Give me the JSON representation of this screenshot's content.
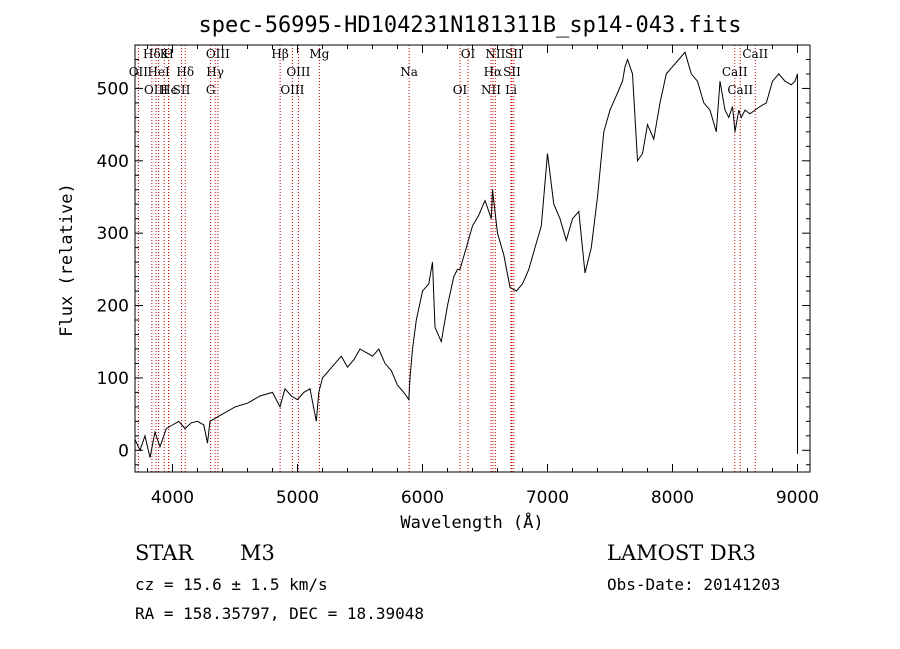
{
  "chart_data": {
    "type": "line",
    "title": "spec-56995-HD104231N181311B_sp14-043.fits",
    "xlabel": "Wavelength (Å)",
    "ylabel": "Flux (relative)",
    "xlim": [
      3700,
      9100
    ],
    "ylim": [
      -30,
      560
    ],
    "xticks": [
      4000,
      5000,
      6000,
      7000,
      8000,
      9000
    ],
    "yticks": [
      0,
      100,
      200,
      300,
      400,
      500
    ],
    "grid": false,
    "series": [
      {
        "name": "flux",
        "color": "#000000",
        "x": [
          3700,
          3740,
          3780,
          3820,
          3860,
          3900,
          3950,
          4000,
          4050,
          4100,
          4150,
          4200,
          4250,
          4280,
          4300,
          4350,
          4400,
          4450,
          4500,
          4600,
          4700,
          4800,
          4860,
          4900,
          4950,
          5000,
          5050,
          5100,
          5150,
          5170,
          5200,
          5250,
          5300,
          5350,
          5400,
          5450,
          5500,
          5550,
          5600,
          5650,
          5700,
          5750,
          5800,
          5850,
          5890,
          5900,
          5920,
          5950,
          6000,
          6050,
          6080,
          6100,
          6150,
          6200,
          6250,
          6280,
          6300,
          6350,
          6400,
          6450,
          6500,
          6550,
          6560,
          6600,
          6650,
          6700,
          6750,
          6800,
          6850,
          6900,
          6950,
          7000,
          7050,
          7100,
          7150,
          7200,
          7250,
          7300,
          7350,
          7400,
          7450,
          7500,
          7550,
          7600,
          7620,
          7640,
          7680,
          7720,
          7760,
          7800,
          7850,
          7900,
          7950,
          8000,
          8050,
          8100,
          8150,
          8200,
          8250,
          8300,
          8350,
          8380,
          8420,
          8450,
          8480,
          8500,
          8530,
          8550,
          8580,
          8620,
          8660,
          8700,
          8750,
          8800,
          8850,
          8900,
          8950,
          8980,
          9000,
          9000,
          9000
        ],
        "y": [
          15,
          0,
          20,
          -10,
          25,
          5,
          30,
          35,
          40,
          30,
          38,
          40,
          35,
          10,
          40,
          45,
          50,
          55,
          60,
          65,
          75,
          80,
          60,
          85,
          75,
          70,
          80,
          85,
          40,
          80,
          100,
          110,
          120,
          130,
          115,
          125,
          140,
          135,
          130,
          140,
          120,
          110,
          90,
          80,
          70,
          100,
          140,
          180,
          220,
          230,
          260,
          170,
          150,
          200,
          240,
          250,
          250,
          280,
          310,
          325,
          345,
          320,
          360,
          300,
          270,
          225,
          220,
          230,
          250,
          280,
          310,
          410,
          340,
          320,
          290,
          320,
          330,
          245,
          280,
          350,
          440,
          470,
          490,
          510,
          530,
          540,
          520,
          400,
          410,
          450,
          430,
          480,
          520,
          530,
          540,
          550,
          520,
          510,
          480,
          470,
          440,
          510,
          470,
          460,
          475,
          440,
          470,
          460,
          470,
          465,
          470,
          475,
          480,
          510,
          520,
          510,
          505,
          510,
          520,
          100,
          -5
        ]
      }
    ],
    "annotations": [
      {
        "label": "Hδ",
        "x": 3835
      },
      {
        "label": "OII",
        "x": 3727
      },
      {
        "label": "OIII",
        "x": 3868
      },
      {
        "label": "K",
        "x": 3934
      },
      {
        "label": "HeI",
        "x": 3889
      },
      {
        "label": "Hϵ",
        "x": 3970
      },
      {
        "label": "H",
        "x": 3968
      },
      {
        "label": "Hδ",
        "x": 4102
      },
      {
        "label": "SII",
        "x": 4072
      },
      {
        "label": "OIII",
        "x": 4363
      },
      {
        "label": "Hγ",
        "x": 4341
      },
      {
        "label": "G",
        "x": 4305
      },
      {
        "label": "Hβ",
        "x": 4861
      },
      {
        "label": "OIII",
        "x": 5007
      },
      {
        "label": "OIII",
        "x": 4959
      },
      {
        "label": "Mg",
        "x": 5175
      },
      {
        "label": "Na",
        "x": 5893
      },
      {
        "label": "OI",
        "x": 6300
      },
      {
        "label": "OI",
        "x": 6364
      },
      {
        "label": "Hα",
        "x": 6563
      },
      {
        "label": "NII",
        "x": 6548
      },
      {
        "label": "NII",
        "x": 6583
      },
      {
        "label": "SII",
        "x": 6716
      },
      {
        "label": "Li",
        "x": 6708
      },
      {
        "label": "SII",
        "x": 6731
      },
      {
        "label": "CaII",
        "x": 8498
      },
      {
        "label": "CaII",
        "x": 8542
      },
      {
        "label": "CaII",
        "x": 8662
      }
    ]
  },
  "info": {
    "class": "STAR",
    "subclass": "M3",
    "survey": "LAMOST DR3",
    "cz": "cz = 15.6 ± 1.5 km/s",
    "obs_date": "Obs-Date: 20141203",
    "coords": "RA = 158.35797, DEC =  18.39048"
  },
  "colors": {
    "line_marker": "#cc0000",
    "spectrum": "#000000"
  }
}
